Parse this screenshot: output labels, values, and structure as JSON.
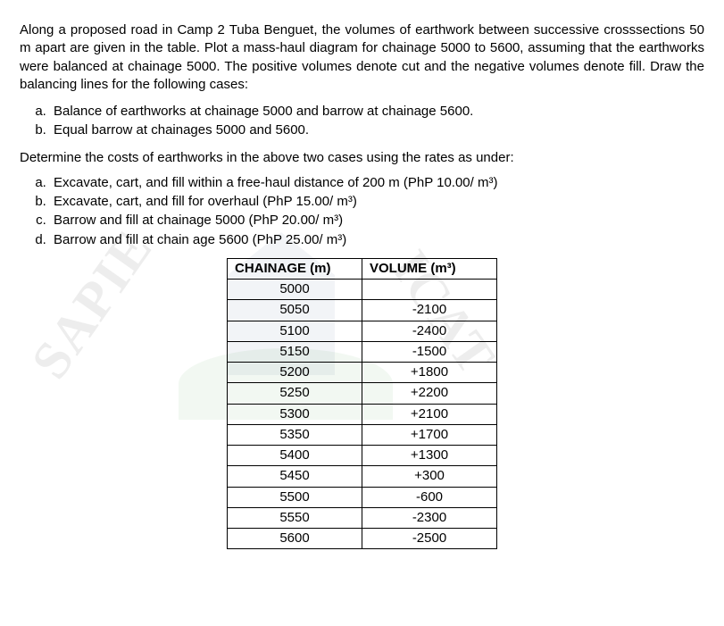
{
  "intro": "Along a proposed road in Camp 2 Tuba Benguet, the volumes of earthwork between successive crosssections 50 m apart are given in the table. Plot a mass-haul diagram for chainage 5000 to 5600, assuming that the earthworks were balanced at chainage 5000. The positive volumes denote cut and the negative volumes denote fill. Draw the balancing lines for the following cases:",
  "cases": [
    "Balance of earthworks at chainage 5000 and barrow at chainage 5600.",
    "Equal barrow at chainages 5000 and 5600."
  ],
  "determine": "Determine the costs of earthworks in the above two cases using the rates as under:",
  "rates": [
    "Excavate, cart, and fill within a free-haul distance of 200 m (PhP 10.00/ m³)",
    "Excavate, cart, and fill for overhaul (PhP 15.00/ m³)",
    "Barrow and fill at chainage 5000 (PhP 20.00/ m³)",
    "Barrow and fill at chain age 5600 (PhP 25.00/ m³)"
  ],
  "table": {
    "headers": [
      "CHAINAGE (m)",
      "VOLUME (m³)"
    ],
    "rows": [
      [
        "5000",
        ""
      ],
      [
        "5050",
        "-2100"
      ],
      [
        "5100",
        "-2400"
      ],
      [
        "5150",
        "-1500"
      ],
      [
        "5200",
        "+1800"
      ],
      [
        "5250",
        "+2200"
      ],
      [
        "5300",
        "+2100"
      ],
      [
        "5350",
        "+1700"
      ],
      [
        "5400",
        "+1300"
      ],
      [
        "5450",
        "+300"
      ],
      [
        "5500",
        "-600"
      ],
      [
        "5550",
        "-2300"
      ],
      [
        "5600",
        "-2500"
      ]
    ]
  },
  "wm_left": "SAPIE",
  "wm_right": "ICAT"
}
